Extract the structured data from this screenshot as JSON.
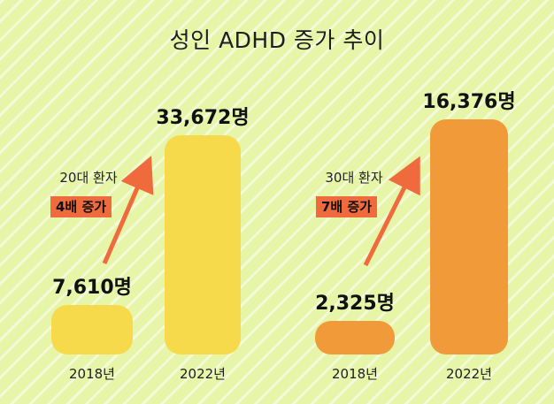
{
  "title": "성인 ADHD 증가 추이",
  "colors": {
    "background": "#e6f5a8",
    "bar_20s": "#f7d94c",
    "bar_30s": "#f09a3a",
    "arrow": "#ef6a3c",
    "badge": "#ef6a3c"
  },
  "chart_data": [
    {
      "type": "bar",
      "categories": [
        "2018년",
        "2022년"
      ],
      "values": [
        7610,
        33672
      ],
      "value_labels": [
        "7,610명",
        "33,672명"
      ],
      "annotation": {
        "group": "20대 환자",
        "change": "4배 증가"
      },
      "color": "#f7d94c",
      "ylim": [
        0,
        33672
      ]
    },
    {
      "type": "bar",
      "categories": [
        "2018년",
        "2022년"
      ],
      "values": [
        2325,
        16376
      ],
      "value_labels": [
        "2,325명",
        "16,376명"
      ],
      "annotation": {
        "group": "30대 환자",
        "change": "7배 증가"
      },
      "color": "#f09a3a",
      "ylim": [
        0,
        16376
      ]
    }
  ]
}
